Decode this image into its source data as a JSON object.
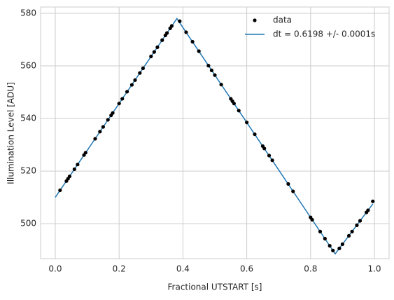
{
  "chart_data": {
    "type": "scatter",
    "xlabel": "Fractional UTSTART [s]",
    "ylabel": "Illumination Level [ADU]",
    "xlim": [
      -0.046,
      1.046
    ],
    "ylim": [
      486.7,
      582.4
    ],
    "xticks": [
      {
        "value": 0,
        "label": "0.0"
      },
      0.2,
      0.4,
      0.6,
      0.8,
      {
        "value": 1,
        "label": "1.0"
      }
    ],
    "yticks": [
      500,
      520,
      540,
      560,
      580
    ],
    "grid": true,
    "legend": "upper right",
    "series": [
      {
        "name": "data",
        "type": "scatter",
        "color": "#000000",
        "x": [
          0.015,
          0.035,
          0.04,
          0.045,
          0.06,
          0.07,
          0.09,
          0.095,
          0.125,
          0.14,
          0.15,
          0.165,
          0.175,
          0.18,
          0.2,
          0.21,
          0.225,
          0.24,
          0.25,
          0.265,
          0.275,
          0.3,
          0.31,
          0.32,
          0.335,
          0.345,
          0.35,
          0.36,
          0.365,
          0.39,
          0.41,
          0.43,
          0.45,
          0.48,
          0.49,
          0.5,
          0.52,
          0.55,
          0.555,
          0.56,
          0.575,
          0.6,
          0.625,
          0.65,
          0.655,
          0.67,
          0.68,
          0.73,
          0.745,
          0.8,
          0.805,
          0.83,
          0.845,
          0.86,
          0.87,
          0.89,
          0.9,
          0.92,
          0.93,
          0.945,
          0.955,
          0.975,
          0.98,
          0.995
        ],
        "values": [
          512.7,
          516.2,
          517.1,
          518.0,
          520.7,
          522.5,
          526.1,
          527.0,
          532.3,
          535.0,
          536.8,
          539.5,
          541.2,
          542.1,
          545.7,
          547.5,
          550.2,
          552.8,
          554.6,
          557.3,
          559.1,
          563.6,
          565.3,
          567.1,
          569.8,
          571.6,
          572.5,
          574.3,
          575.2,
          577.0,
          572.8,
          569.2,
          565.6,
          560.1,
          558.3,
          556.5,
          552.9,
          547.5,
          546.6,
          545.7,
          543.0,
          538.5,
          534.0,
          529.5,
          528.6,
          525.9,
          524.1,
          515.1,
          512.3,
          502.4,
          501.5,
          497.0,
          494.3,
          491.6,
          489.8,
          490.6,
          492.2,
          495.4,
          497.0,
          499.4,
          501.1,
          504.3,
          505.1,
          508.5
        ]
      },
      {
        "name": "dt =  0.6198 +/-  0.0001s",
        "type": "line",
        "color": "#1f77b4",
        "x": [
          0,
          0.381,
          0.877,
          0.995
        ],
        "values": [
          510,
          578,
          488.5,
          507.5
        ]
      }
    ]
  }
}
